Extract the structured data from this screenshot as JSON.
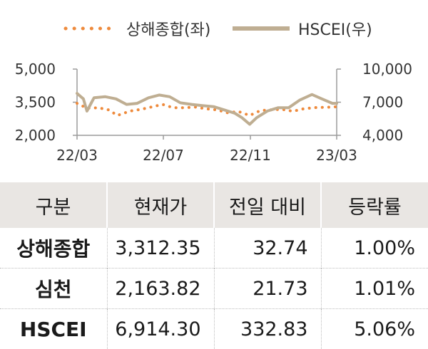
{
  "legend": {
    "series1": "상해종합(좌)",
    "series2": "HSCEI(우)"
  },
  "chart_data": {
    "type": "line",
    "x_ticks": [
      "22/03",
      "22/07",
      "22/11",
      "23/03"
    ],
    "y_left_ticks": [
      "5,000",
      "3,500",
      "2,000"
    ],
    "y_right_ticks": [
      "10,000",
      "7,000",
      "4,000"
    ],
    "y_left_range": [
      2000,
      5000
    ],
    "y_right_range": [
      4000,
      10000
    ],
    "colors": {
      "series1": "#ee8a3c",
      "series2": "#bfae92"
    },
    "series": [
      {
        "name": "상해종합(좌)",
        "axis": "left",
        "style": "dotted",
        "x": [
          "2022-03-01",
          "2022-03-15",
          "2022-03-31",
          "2022-04-15",
          "2022-04-27",
          "2022-05-15",
          "2022-05-31",
          "2022-06-15",
          "2022-06-30",
          "2022-07-15",
          "2022-07-31",
          "2022-08-15",
          "2022-08-31",
          "2022-09-15",
          "2022-09-30",
          "2022-10-15",
          "2022-10-31",
          "2022-11-15",
          "2022-11-30",
          "2022-12-15",
          "2022-12-31",
          "2023-01-15",
          "2023-01-31",
          "2023-02-15",
          "2023-02-28",
          "2023-03-03"
        ],
        "values": [
          3450,
          3230,
          3250,
          3150,
          2900,
          3100,
          3180,
          3290,
          3400,
          3250,
          3250,
          3280,
          3200,
          3150,
          3020,
          3080,
          2900,
          3120,
          3150,
          3180,
          3090,
          3200,
          3255,
          3270,
          3280,
          3310
        ]
      },
      {
        "name": "HSCEI(우)",
        "axis": "right",
        "style": "solid",
        "x": [
          "2022-03-01",
          "2022-03-10",
          "2022-03-15",
          "2022-03-25",
          "2022-04-10",
          "2022-04-25",
          "2022-05-10",
          "2022-05-25",
          "2022-06-10",
          "2022-06-25",
          "2022-07-10",
          "2022-07-25",
          "2022-08-10",
          "2022-08-25",
          "2022-09-10",
          "2022-09-25",
          "2022-10-10",
          "2022-10-20",
          "2022-10-31",
          "2022-11-10",
          "2022-11-25",
          "2022-12-10",
          "2022-12-25",
          "2023-01-10",
          "2023-01-27",
          "2023-02-10",
          "2023-02-25",
          "2023-03-03"
        ],
        "values": [
          7800,
          7300,
          6200,
          7400,
          7500,
          7300,
          6800,
          6900,
          7400,
          7650,
          7500,
          6950,
          6800,
          6700,
          6600,
          6300,
          6000,
          5600,
          5000,
          5600,
          6200,
          6500,
          6500,
          7200,
          7700,
          7300,
          6900,
          6900
        ]
      }
    ]
  },
  "table": {
    "headers": [
      "구분",
      "현재가",
      "전일 대비",
      "등락률"
    ],
    "rows": [
      [
        "상해종합",
        "3,312.35",
        "32.74",
        "1.00%"
      ],
      [
        "심천",
        "2,163.82",
        "21.73",
        "1.01%"
      ],
      [
        "HSCEI",
        "6,914.30",
        "332.83",
        "5.06%"
      ]
    ]
  }
}
